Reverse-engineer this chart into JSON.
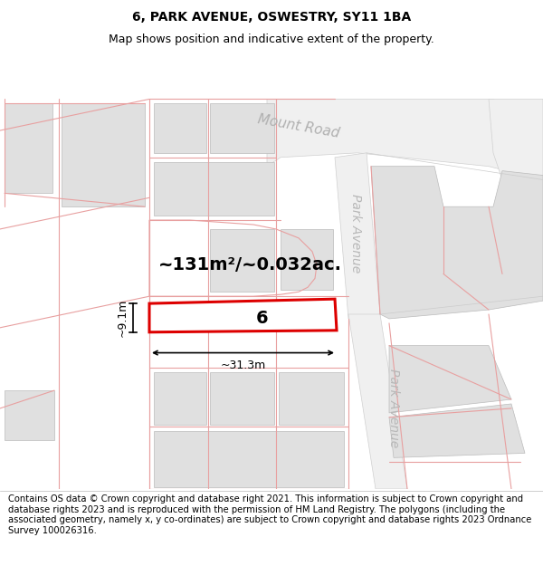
{
  "title": "6, PARK AVENUE, OSWESTRY, SY11 1BA",
  "subtitle": "Map shows position and indicative extent of the property.",
  "footer": "Contains OS data © Crown copyright and database right 2021. This information is subject to Crown copyright and database rights 2023 and is reproduced with the permission of HM Land Registry. The polygons (including the associated geometry, namely x, y co-ordinates) are subject to Crown copyright and database rights 2023 Ordnance Survey 100026316.",
  "area_text": "~131m²/~0.032ac.",
  "label_text": "6",
  "dim_width": "~31.3m",
  "dim_height": "~9.1m",
  "road_label_mount": "Mount Road",
  "road_label_park_upper": "Park Avenue",
  "road_label_park_lower": "Park Avenue",
  "map_bg": "#ffffff",
  "road_fill": "#e8e8e8",
  "building_fill": "#e0e0e0",
  "cadastral_color": "#e8a0a0",
  "road_outline_color": "#d0d0d0",
  "plot_red": "#dd0000",
  "title_fontsize": 10,
  "subtitle_fontsize": 9,
  "footer_fontsize": 7.2,
  "area_fontsize": 14,
  "dim_fontsize": 9,
  "road_label_fontsize": 11,
  "park_label_fontsize": 10
}
